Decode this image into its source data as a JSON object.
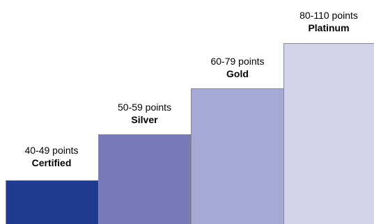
{
  "levels": [
    {
      "points": "40-49 points",
      "name": "Certified",
      "color": "#1f3a8f"
    },
    {
      "points": "50-59 points",
      "name": "Silver",
      "color": "#7779b8"
    },
    {
      "points": "60-79 points",
      "name": "Gold",
      "color": "#a6a8d6"
    },
    {
      "points": "80-110 points",
      "name": "Platinum",
      "color": "#d3d3ec"
    }
  ]
}
